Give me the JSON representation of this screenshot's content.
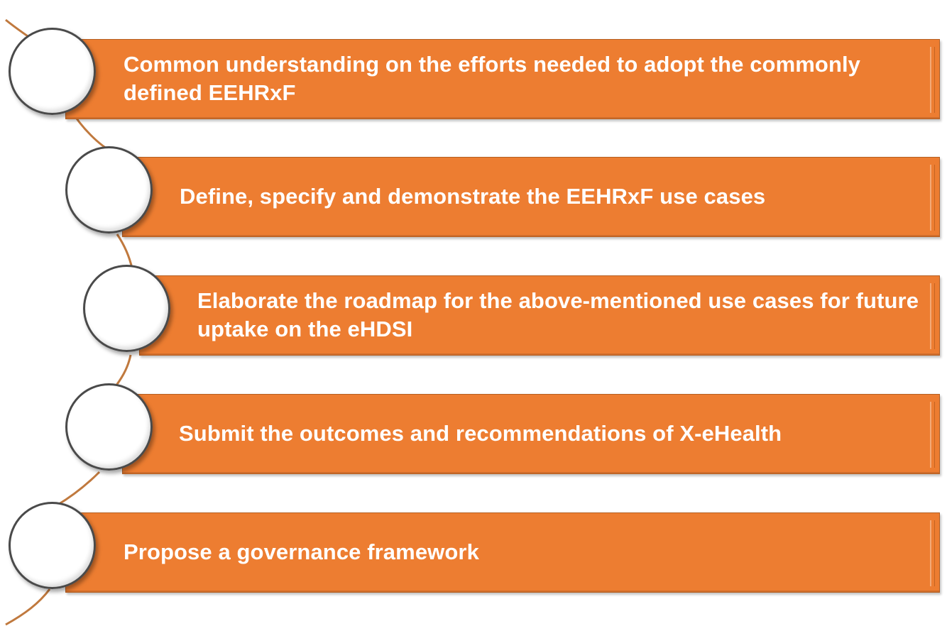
{
  "diagram": {
    "colors": {
      "bar_fill": "#ed7d31",
      "bar_text": "#ffffff",
      "circle_fill": "#ffffff",
      "circle_border": "#4a4a4a",
      "connector": "#c0793e"
    },
    "steps": [
      {
        "label": "Common understanding on the efforts needed to adopt the commonly defined EEHRxF"
      },
      {
        "label": "Define, specify and demonstrate the EEHRxF use cases"
      },
      {
        "label": "Elaborate the roadmap for the above-mentioned use cases for future uptake on the eHDSI"
      },
      {
        "label": "Submit the outcomes and recommendations of X-eHealth"
      },
      {
        "label": "Propose a governance framework"
      }
    ]
  }
}
